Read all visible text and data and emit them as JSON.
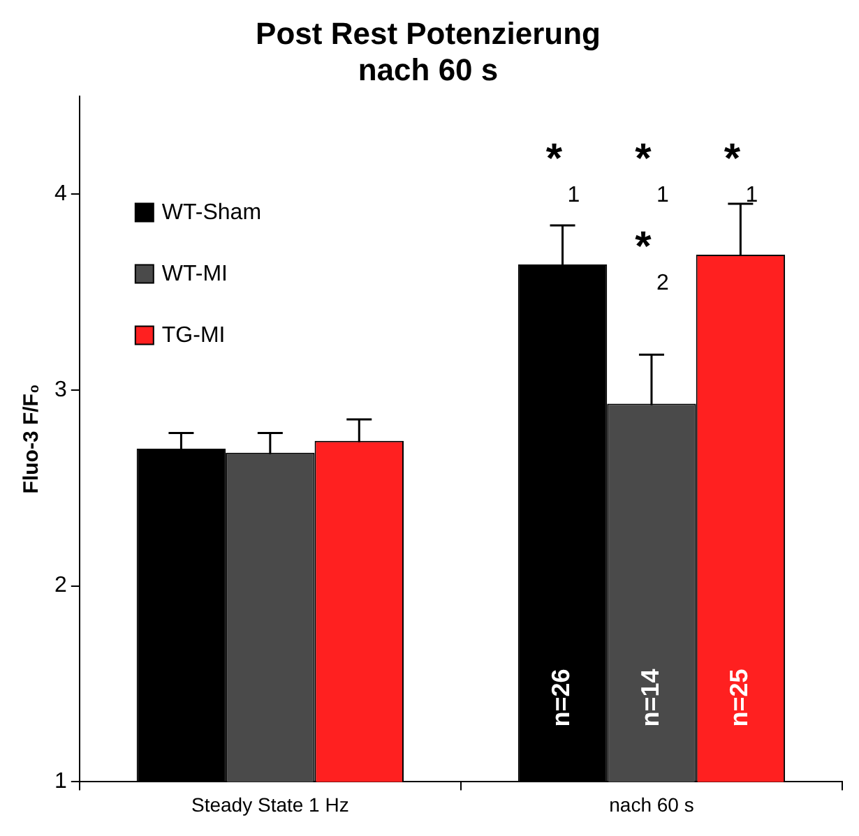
{
  "chart_data": {
    "type": "bar",
    "title": "Post Rest Potenzierung\nnach 60 s",
    "ylabel": "Fluo-3 F/F₀",
    "categories": [
      "Steady State 1 Hz",
      "nach 60 s"
    ],
    "series": [
      {
        "name": "WT-Sham",
        "color": "#000000",
        "values": [
          2.7,
          3.64
        ],
        "errors": [
          0.08,
          0.2
        ]
      },
      {
        "name": "WT-MI",
        "color": "#4a4a4a",
        "values": [
          2.68,
          2.93
        ],
        "errors": [
          0.1,
          0.25
        ]
      },
      {
        "name": "TG-MI",
        "color": "#ff2020",
        "values": [
          2.74,
          3.69
        ],
        "errors": [
          0.11,
          0.26
        ]
      }
    ],
    "ylim": [
      1,
      4.5
    ],
    "yticks": [
      1,
      2,
      3,
      4
    ],
    "grid": false,
    "legend": "top left",
    "annotations": [
      "*$_{1}$",
      "*$_{1}$",
      "*$_{1}$",
      "*$_{2}$",
      "n=26",
      "n=14",
      "n=25"
    ]
  }
}
